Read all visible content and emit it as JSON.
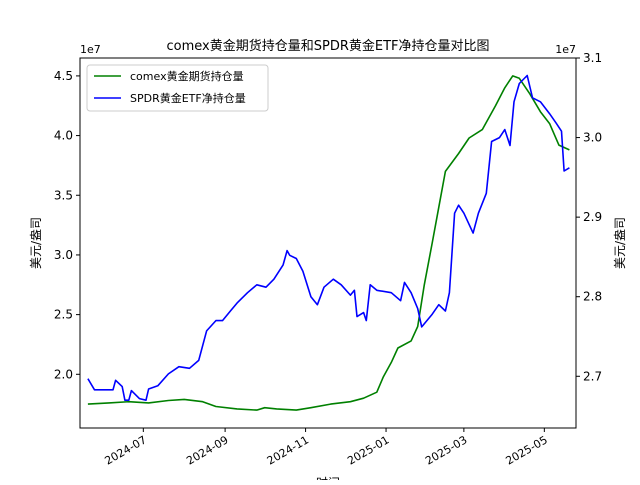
{
  "chart_data": {
    "type": "line",
    "title": "comex黄金期货持仓量和SPDR黄金ETF净持仓量对比图",
    "xlabel": "时间",
    "ylabel_left": "美元/盎司",
    "ylabel_right": "美元/盎司",
    "left_axis_offset": "1e7",
    "right_axis_offset": "1e7",
    "ylim_left": [
      1.55,
      4.65
    ],
    "ylim_right": [
      2.635,
      3.1
    ],
    "x_range": [
      "2024-05-14",
      "2025-05-25"
    ],
    "y_ticks_left": [
      2.0,
      2.5,
      3.0,
      3.5,
      4.0,
      4.5
    ],
    "y_ticks_left_labels": [
      "2.0",
      "2.5",
      "3.0",
      "3.5",
      "4.0",
      "4.5"
    ],
    "y_ticks_right": [
      2.7,
      2.8,
      2.9,
      3.0,
      3.1
    ],
    "y_ticks_right_labels": [
      "2.7",
      "2.8",
      "2.9",
      "3.0",
      "3.1"
    ],
    "x_ticks": [
      "2024-07-01",
      "2024-09-01",
      "2024-11-01",
      "2025-01-01",
      "2025-03-01",
      "2025-05-01"
    ],
    "x_tick_labels": [
      "2024-07",
      "2024-09",
      "2024-11",
      "2025-01",
      "2025-03",
      "2025-05"
    ],
    "legend": {
      "placement": "upper-left"
    },
    "grid": false,
    "series": [
      {
        "name": "comex黄金期货持仓量",
        "axis": "left",
        "color": "#008000",
        "points": [
          [
            "2024-05-20",
            1.75
          ],
          [
            "2024-06-05",
            1.76
          ],
          [
            "2024-06-20",
            1.77
          ],
          [
            "2024-07-05",
            1.76
          ],
          [
            "2024-07-20",
            1.78
          ],
          [
            "2024-08-01",
            1.79
          ],
          [
            "2024-08-15",
            1.77
          ],
          [
            "2024-08-25",
            1.73
          ],
          [
            "2024-09-10",
            1.71
          ],
          [
            "2024-09-25",
            1.7
          ],
          [
            "2024-10-01",
            1.72
          ],
          [
            "2024-10-10",
            1.71
          ],
          [
            "2024-10-25",
            1.7
          ],
          [
            "2024-11-05",
            1.72
          ],
          [
            "2024-11-20",
            1.75
          ],
          [
            "2024-12-05",
            1.77
          ],
          [
            "2024-12-15",
            1.8
          ],
          [
            "2024-12-25",
            1.85
          ],
          [
            "2024-12-30",
            1.98
          ],
          [
            "2025-01-05",
            2.1
          ],
          [
            "2025-01-10",
            2.22
          ],
          [
            "2025-01-20",
            2.28
          ],
          [
            "2025-01-25",
            2.4
          ],
          [
            "2025-01-30",
            2.75
          ],
          [
            "2025-02-05",
            3.1
          ],
          [
            "2025-02-10",
            3.4
          ],
          [
            "2025-02-15",
            3.7
          ],
          [
            "2025-02-25",
            3.85
          ],
          [
            "2025-03-05",
            3.98
          ],
          [
            "2025-03-15",
            4.05
          ],
          [
            "2025-03-25",
            4.25
          ],
          [
            "2025-04-01",
            4.4
          ],
          [
            "2025-04-07",
            4.5
          ],
          [
            "2025-04-12",
            4.48
          ],
          [
            "2025-04-20",
            4.35
          ],
          [
            "2025-04-28",
            4.2
          ],
          [
            "2025-05-05",
            4.1
          ],
          [
            "2025-05-12",
            3.92
          ],
          [
            "2025-05-20",
            3.88
          ]
        ]
      },
      {
        "name": "SPDR黄金ETF净持仓量",
        "axis": "right",
        "color": "#0000ff",
        "points": [
          [
            "2024-05-20",
            2.697
          ],
          [
            "2024-05-25",
            2.683
          ],
          [
            "2024-06-01",
            2.683
          ],
          [
            "2024-06-08",
            2.683
          ],
          [
            "2024-06-10",
            2.695
          ],
          [
            "2024-06-15",
            2.687
          ],
          [
            "2024-06-17",
            2.67
          ],
          [
            "2024-06-20",
            2.67
          ],
          [
            "2024-06-22",
            2.682
          ],
          [
            "2024-06-28",
            2.672
          ],
          [
            "2024-07-03",
            2.67
          ],
          [
            "2024-07-05",
            2.684
          ],
          [
            "2024-07-12",
            2.688
          ],
          [
            "2024-07-20",
            2.703
          ],
          [
            "2024-07-28",
            2.712
          ],
          [
            "2024-08-05",
            2.71
          ],
          [
            "2024-08-12",
            2.72
          ],
          [
            "2024-08-18",
            2.757
          ],
          [
            "2024-08-25",
            2.77
          ],
          [
            "2024-08-30",
            2.77
          ],
          [
            "2024-09-05",
            2.782
          ],
          [
            "2024-09-10",
            2.792
          ],
          [
            "2024-09-18",
            2.805
          ],
          [
            "2024-09-25",
            2.815
          ],
          [
            "2024-10-02",
            2.812
          ],
          [
            "2024-10-08",
            2.822
          ],
          [
            "2024-10-15",
            2.84
          ],
          [
            "2024-10-18",
            2.858
          ],
          [
            "2024-10-20",
            2.852
          ],
          [
            "2024-10-25",
            2.848
          ],
          [
            "2024-10-30",
            2.832
          ],
          [
            "2024-11-05",
            2.8
          ],
          [
            "2024-11-10",
            2.79
          ],
          [
            "2024-11-15",
            2.812
          ],
          [
            "2024-11-22",
            2.822
          ],
          [
            "2024-11-28",
            2.815
          ],
          [
            "2024-12-05",
            2.802
          ],
          [
            "2024-12-08",
            2.808
          ],
          [
            "2024-12-10",
            2.775
          ],
          [
            "2024-12-15",
            2.78
          ],
          [
            "2024-12-17",
            2.77
          ],
          [
            "2024-12-20",
            2.815
          ],
          [
            "2024-12-25",
            2.808
          ],
          [
            "2025-01-05",
            2.805
          ],
          [
            "2025-01-12",
            2.795
          ],
          [
            "2025-01-15",
            2.818
          ],
          [
            "2025-01-20",
            2.805
          ],
          [
            "2025-01-25",
            2.785
          ],
          [
            "2025-01-28",
            2.762
          ],
          [
            "2025-02-05",
            2.778
          ],
          [
            "2025-02-10",
            2.79
          ],
          [
            "2025-02-15",
            2.782
          ],
          [
            "2025-02-18",
            2.805
          ],
          [
            "2025-02-22",
            2.905
          ],
          [
            "2025-02-25",
            2.915
          ],
          [
            "2025-03-01",
            2.905
          ],
          [
            "2025-03-08",
            2.88
          ],
          [
            "2025-03-12",
            2.905
          ],
          [
            "2025-03-18",
            2.93
          ],
          [
            "2025-03-22",
            2.995
          ],
          [
            "2025-03-28",
            3.0
          ],
          [
            "2025-04-01",
            3.01
          ],
          [
            "2025-04-05",
            2.99
          ],
          [
            "2025-04-08",
            3.045
          ],
          [
            "2025-04-12",
            3.068
          ],
          [
            "2025-04-18",
            3.078
          ],
          [
            "2025-04-22",
            3.05
          ],
          [
            "2025-04-28",
            3.045
          ],
          [
            "2025-05-05",
            3.03
          ],
          [
            "2025-05-10",
            3.018
          ],
          [
            "2025-05-14",
            3.008
          ],
          [
            "2025-05-16",
            2.958
          ],
          [
            "2025-05-20",
            2.962
          ]
        ]
      }
    ]
  }
}
